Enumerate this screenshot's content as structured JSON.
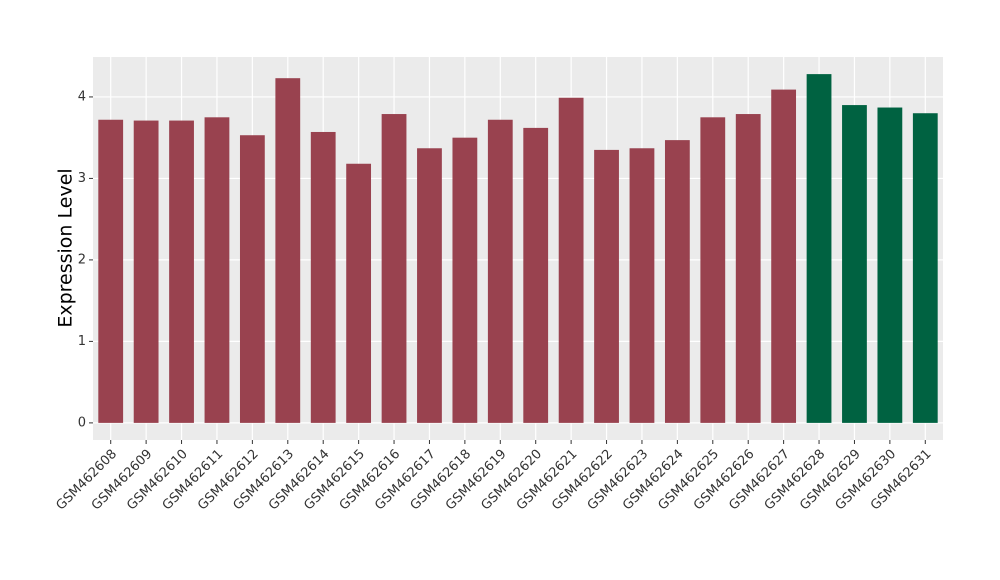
{
  "chart_data": {
    "type": "bar",
    "y_label": "Expression Level",
    "categories": [
      "GSM462608",
      "GSM462609",
      "GSM462610",
      "GSM462611",
      "GSM462612",
      "GSM462613",
      "GSM462614",
      "GSM462615",
      "GSM462616",
      "GSM462617",
      "GSM462618",
      "GSM462619",
      "GSM462620",
      "GSM462621",
      "GSM462622",
      "GSM462623",
      "GSM462624",
      "GSM462625",
      "GSM462626",
      "GSM462627",
      "GSM462628",
      "GSM462629",
      "GSM462630",
      "GSM462631"
    ],
    "values": [
      3.72,
      3.71,
      3.71,
      3.75,
      3.53,
      4.23,
      3.57,
      3.18,
      3.79,
      3.37,
      3.5,
      3.72,
      3.62,
      3.99,
      3.35,
      3.37,
      3.47,
      3.75,
      3.79,
      4.09,
      4.28,
      3.9,
      3.87,
      3.8
    ],
    "colors": [
      "#99424f",
      "#99424f",
      "#99424f",
      "#99424f",
      "#99424f",
      "#99424f",
      "#99424f",
      "#99424f",
      "#99424f",
      "#99424f",
      "#99424f",
      "#99424f",
      "#99424f",
      "#99424f",
      "#99424f",
      "#99424f",
      "#99424f",
      "#99424f",
      "#99424f",
      "#99424f",
      "#006241",
      "#006241",
      "#006241",
      "#006241"
    ],
    "ylim": [
      -0.21,
      4.49
    ],
    "yticks": [
      0,
      1,
      2,
      3,
      4
    ],
    "grid": true
  }
}
